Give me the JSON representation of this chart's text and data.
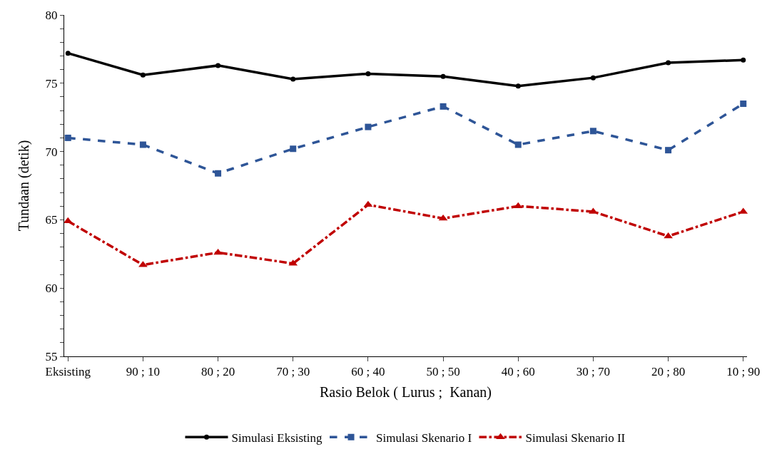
{
  "chart_data": {
    "type": "line",
    "xlabel": "Rasio Belok ( Lurus ;  Kanan)",
    "ylabel": "Tundaan (detik)",
    "categories": [
      "Eksisting",
      "90 ; 10",
      "80 ; 20",
      "70 ; 30",
      "60 ; 40",
      "50 ; 50",
      "40 ; 60",
      "30 ; 70",
      "20 ; 80",
      "10 ; 90"
    ],
    "series": [
      {
        "name": "Simulasi Eksisting",
        "color": "#000000",
        "marker": "circle",
        "line_style": "solid",
        "values": [
          77.2,
          75.6,
          76.3,
          75.3,
          75.7,
          75.5,
          74.8,
          75.4,
          76.5,
          76.7
        ]
      },
      {
        "name": "Simulasi Skenario I",
        "color": "#2e5597",
        "marker": "square",
        "line_style": "dashed",
        "values": [
          71.0,
          70.5,
          68.4,
          70.2,
          71.8,
          73.3,
          70.5,
          71.5,
          70.1,
          73.5
        ]
      },
      {
        "name": "Simulasi Skenario II",
        "color": "#c00000",
        "marker": "triangle",
        "line_style": "dashdot",
        "values": [
          64.9,
          61.7,
          62.6,
          61.8,
          66.1,
          65.1,
          66.0,
          65.6,
          63.8,
          65.6
        ]
      }
    ],
    "ylim": [
      55,
      80
    ],
    "yticks": [
      55,
      {
        "value": 56,
        "label": null
      },
      {
        "value": 57,
        "label": null
      },
      {
        "value": 58,
        "label": null
      },
      {
        "value": 59,
        "label": null
      },
      60,
      {
        "value": 61,
        "label": null
      },
      {
        "value": 62,
        "label": null
      },
      {
        "value": 63,
        "label": null
      },
      {
        "value": 64,
        "label": null
      },
      65,
      {
        "value": 66,
        "label": null
      },
      {
        "value": 67,
        "label": null
      },
      {
        "value": 68,
        "label": null
      },
      {
        "value": 69,
        "label": null
      },
      70,
      {
        "value": 71,
        "label": null
      },
      {
        "value": 72,
        "label": null
      },
      {
        "value": 73,
        "label": null
      },
      {
        "value": 74,
        "label": null
      },
      75,
      {
        "value": 76,
        "label": null
      },
      {
        "value": 77,
        "label": null
      },
      {
        "value": 78,
        "label": null
      },
      {
        "value": 79,
        "label": null
      },
      80
    ],
    "grid": false,
    "legend": "bottom"
  }
}
